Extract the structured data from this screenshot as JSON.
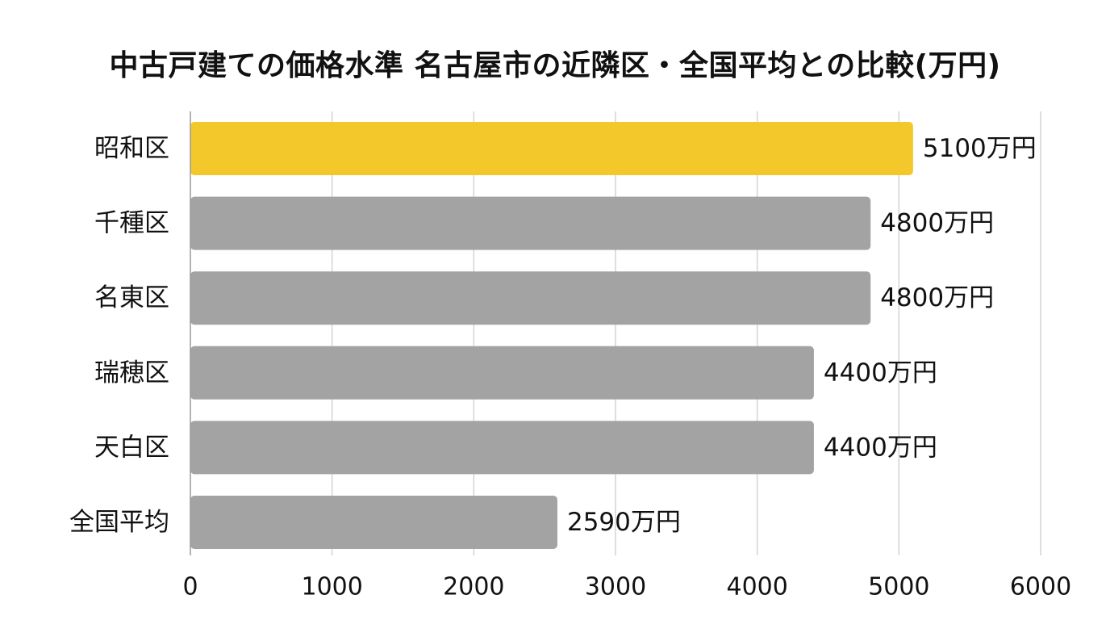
{
  "chart_data": {
    "type": "bar",
    "orientation": "horizontal",
    "title": "中古戸建ての価格水準 名古屋市の近隣区・全国平均との比較(万円)",
    "categories": [
      "昭和区",
      "千種区",
      "名東区",
      "瑞穂区",
      "天白区",
      "全国平均"
    ],
    "values": [
      5100,
      4800,
      4800,
      4400,
      4400,
      2590
    ],
    "data_labels": [
      "5100万円",
      "4800万円",
      "4800万円",
      "4400万円",
      "4400万円",
      "2590万円"
    ],
    "highlight_index": 0,
    "xlim": [
      0,
      6000
    ],
    "xticks": [
      0,
      1000,
      2000,
      3000,
      4000,
      5000,
      6000
    ],
    "xlabel": "",
    "ylabel": "",
    "grid": "vertical",
    "legend": "none",
    "colors": {
      "highlight": "#F2C82A",
      "default": "#A3A3A3",
      "grid": "#D4D4D4",
      "axis": "#9A9A9A"
    }
  }
}
